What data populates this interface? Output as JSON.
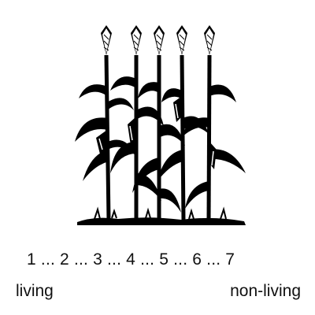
{
  "figure": {
    "icon": "corn-plants-illustration",
    "ink_color": "#000000"
  },
  "scale": {
    "numbers": "1 ... 2 ... 3 ... 4 ... 5 ... 6 ... 7",
    "left_label": "living",
    "right_label": "non-living"
  }
}
